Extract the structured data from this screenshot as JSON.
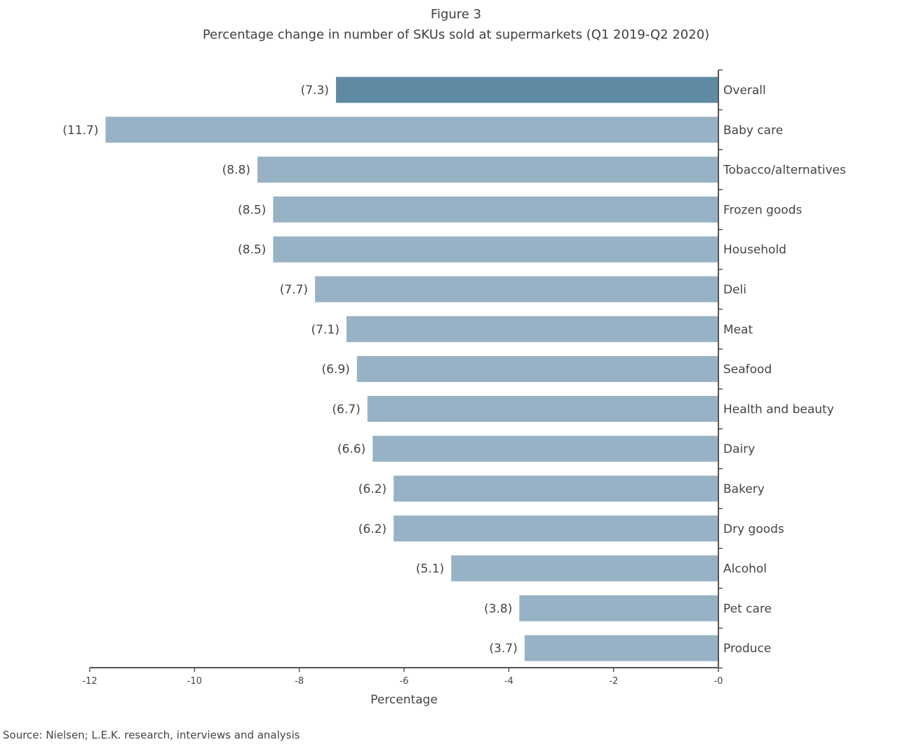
{
  "figure_label": "Figure 3",
  "source": "Source: Nielsen; L.E.K. research, interviews and analysis",
  "chart_data": {
    "type": "bar",
    "orientation": "horizontal",
    "title": "Percentage change in number of SKUs sold at supermarkets (Q1 2019-Q2 2020)",
    "xlabel": "Percentage",
    "ylabel": "",
    "xlim": [
      -12,
      0
    ],
    "xticks": [
      -12,
      -10,
      -8,
      -6,
      -4,
      -2,
      0
    ],
    "xtick_labels": [
      "-12",
      "-10",
      "-8",
      "-6",
      "-4",
      "-2",
      "-0"
    ],
    "grid": false,
    "categories": [
      "Overall",
      "Baby care",
      "Tobacco/alternatives",
      "Frozen goods",
      "Household",
      "Deli",
      "Meat",
      "Seafood",
      "Health and beauty",
      "Dairy",
      "Bakery",
      "Dry goods",
      "Alcohol",
      "Pet care",
      "Produce"
    ],
    "values": [
      -7.3,
      -11.7,
      -8.8,
      -8.5,
      -8.5,
      -7.7,
      -7.1,
      -6.9,
      -6.7,
      -6.6,
      -6.2,
      -6.2,
      -5.1,
      -3.8,
      -3.7
    ],
    "data_labels": [
      "(7.3)",
      "(11.7)",
      "(8.8)",
      "(8.5)",
      "(8.5)",
      "(7.7)",
      "(7.1)",
      "(6.9)",
      "(6.7)",
      "(6.6)",
      "(6.2)",
      "(6.2)",
      "(5.1)",
      "(3.8)",
      "(3.7)"
    ],
    "colors": {
      "highlight": "#5f8aa3",
      "bar": "#98b2c5",
      "axis": "#555555"
    }
  }
}
